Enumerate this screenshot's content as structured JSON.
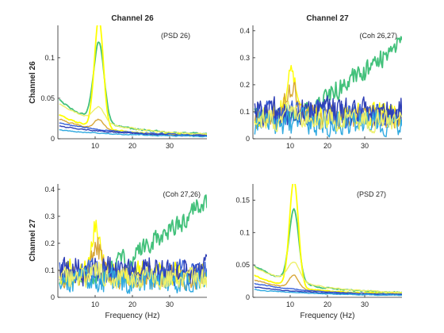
{
  "figure": {
    "background": "#ffffff",
    "colors": {
      "yellow": "#ffff00",
      "green": "#43c17b",
      "orange": "#d8a73a",
      "blue": "#3860d8",
      "darkblue": "#2f3fb6",
      "skyblue": "#2fa9e0",
      "lightyellow": "#eef06a"
    }
  },
  "chart_data": [
    {
      "type": "line",
      "title": "Channel 26",
      "annotation": "(PSD 26)",
      "ylabel": "Channel 26",
      "xlabel": "",
      "xlim": [
        0,
        40
      ],
      "ylim": [
        0,
        0.14
      ],
      "xticks": [
        10,
        20,
        30
      ],
      "xticklabels": [
        "10",
        "20",
        "30"
      ],
      "yticks": [
        0,
        0.05,
        0.1
      ],
      "yticklabels": [
        "0",
        "0.05",
        "0.1"
      ],
      "grid": false,
      "series": [
        {
          "color": "#43c17b",
          "kind": "psd",
          "base": 0.05,
          "peak": 0.098,
          "width": 1.4,
          "decay": 11,
          "floor": 0.005,
          "noise": 0.002,
          "seed": 1
        },
        {
          "color": "#ffff00",
          "kind": "psd",
          "base": 0.03,
          "peak": 0.135,
          "width": 1.2,
          "decay": 11,
          "floor": 0.004,
          "noise": 0.0015,
          "seed": 2
        },
        {
          "color": "#eef06a",
          "kind": "psd",
          "base": 0.045,
          "peak": 0.018,
          "width": 1.5,
          "decay": 13,
          "floor": 0.004,
          "noise": 0.0015,
          "seed": 3
        },
        {
          "color": "#d8a73a",
          "kind": "psd",
          "base": 0.025,
          "peak": 0.012,
          "width": 1.3,
          "decay": 12,
          "floor": 0.003,
          "noise": 0.0015,
          "seed": 4
        },
        {
          "color": "#3860d8",
          "kind": "psd",
          "base": 0.02,
          "peak": 0.0,
          "width": 1.0,
          "decay": 16,
          "floor": 0.003,
          "noise": 0.0012,
          "seed": 5
        },
        {
          "color": "#2f3fb6",
          "kind": "psd",
          "base": 0.016,
          "peak": 0.0,
          "width": 1.0,
          "decay": 18,
          "floor": 0.002,
          "noise": 0.0012,
          "seed": 6
        },
        {
          "color": "#2fa9e0",
          "kind": "psd",
          "base": 0.011,
          "peak": 0.0,
          "width": 1.0,
          "decay": 18,
          "floor": 0.002,
          "noise": 0.001,
          "seed": 7
        }
      ]
    },
    {
      "type": "line",
      "title": "Channel 27",
      "annotation": "(Coh 26,27)",
      "ylabel": "",
      "xlabel": "",
      "xlim": [
        0,
        40
      ],
      "ylim": [
        0,
        0.42
      ],
      "xticks": [
        10,
        20,
        30
      ],
      "xticklabels": [
        "10",
        "20",
        "30"
      ],
      "yticks": [
        0,
        0.1,
        0.2,
        0.3,
        0.4
      ],
      "yticklabels": [
        "0",
        "0.1",
        "0.2",
        "0.3",
        "0.4"
      ],
      "grid": false,
      "series": [
        {
          "color": "#43c17b",
          "kind": "ramp",
          "level": 0.08,
          "end": 0.35,
          "start_x": 12,
          "noise": 0.035,
          "seed": 11
        },
        {
          "color": "#ffff00",
          "kind": "coh",
          "level": 0.09,
          "peak": 0.18,
          "noise": 0.035,
          "seed": 12
        },
        {
          "color": "#d8a73a",
          "kind": "coh",
          "level": 0.08,
          "peak": 0.12,
          "noise": 0.035,
          "seed": 13
        },
        {
          "color": "#3860d8",
          "kind": "coh",
          "level": 0.09,
          "peak": 0.0,
          "noise": 0.035,
          "seed": 14
        },
        {
          "color": "#2f3fb6",
          "kind": "coh",
          "level": 0.1,
          "peak": 0.0,
          "noise": 0.04,
          "seed": 15
        },
        {
          "color": "#2fa9e0",
          "kind": "coh",
          "level": 0.06,
          "peak": 0.0,
          "noise": 0.035,
          "seed": 16
        },
        {
          "color": "#eef06a",
          "kind": "coh",
          "level": 0.07,
          "peak": 0.04,
          "noise": 0.03,
          "seed": 17
        }
      ]
    },
    {
      "type": "line",
      "title": "",
      "annotation": "(Coh 27,26)",
      "ylabel": "Channel 27",
      "xlabel": "Frequency (Hz)",
      "xlim": [
        0,
        40
      ],
      "ylim": [
        0,
        0.42
      ],
      "xticks": [
        10,
        20,
        30
      ],
      "xticklabels": [
        "10",
        "20",
        "30"
      ],
      "yticks": [
        0,
        0.1,
        0.2,
        0.3,
        0.4
      ],
      "yticklabels": [
        "0",
        "0.1",
        "0.2",
        "0.3",
        "0.4"
      ],
      "grid": false,
      "series": [
        {
          "color": "#43c17b",
          "kind": "ramp",
          "level": 0.08,
          "end": 0.35,
          "start_x": 12,
          "noise": 0.035,
          "seed": 21
        },
        {
          "color": "#ffff00",
          "kind": "coh",
          "level": 0.09,
          "peak": 0.18,
          "noise": 0.035,
          "seed": 22
        },
        {
          "color": "#d8a73a",
          "kind": "coh",
          "level": 0.08,
          "peak": 0.12,
          "noise": 0.035,
          "seed": 23
        },
        {
          "color": "#3860d8",
          "kind": "coh",
          "level": 0.09,
          "peak": 0.0,
          "noise": 0.035,
          "seed": 24
        },
        {
          "color": "#2f3fb6",
          "kind": "coh",
          "level": 0.1,
          "peak": 0.0,
          "noise": 0.04,
          "seed": 25
        },
        {
          "color": "#2fa9e0",
          "kind": "coh",
          "level": 0.06,
          "peak": 0.0,
          "noise": 0.035,
          "seed": 26
        },
        {
          "color": "#eef06a",
          "kind": "coh",
          "level": 0.07,
          "peak": 0.04,
          "noise": 0.03,
          "seed": 27
        }
      ]
    },
    {
      "type": "line",
      "title": "",
      "annotation": "(PSD 27)",
      "ylabel": "",
      "xlabel": "Frequency (Hz)",
      "xlim": [
        0,
        40
      ],
      "ylim": [
        0,
        0.175
      ],
      "xticks": [
        10,
        20,
        30
      ],
      "xticklabels": [
        "10",
        "20",
        "30"
      ],
      "yticks": [
        0,
        0.05,
        0.1,
        0.15
      ],
      "yticklabels": [
        "0",
        "0.05",
        "0.1",
        "0.15"
      ],
      "grid": false,
      "series": [
        {
          "color": "#43c17b",
          "kind": "psd",
          "base": 0.05,
          "peak": 0.112,
          "width": 1.3,
          "decay": 13,
          "floor": 0.005,
          "noise": 0.002,
          "seed": 31
        },
        {
          "color": "#ffff00",
          "kind": "psd",
          "base": 0.035,
          "peak": 0.165,
          "width": 1.2,
          "decay": 11,
          "floor": 0.005,
          "noise": 0.0015,
          "seed": 32
        },
        {
          "color": "#eef06a",
          "kind": "psd",
          "base": 0.048,
          "peak": 0.03,
          "width": 1.6,
          "decay": 14,
          "floor": 0.005,
          "noise": 0.0015,
          "seed": 33
        },
        {
          "color": "#d8a73a",
          "kind": "psd",
          "base": 0.028,
          "peak": 0.02,
          "width": 1.3,
          "decay": 12,
          "floor": 0.004,
          "noise": 0.0015,
          "seed": 34
        },
        {
          "color": "#3860d8",
          "kind": "psd",
          "base": 0.022,
          "peak": 0.0,
          "width": 1.0,
          "decay": 16,
          "floor": 0.003,
          "noise": 0.0012,
          "seed": 35
        },
        {
          "color": "#2f3fb6",
          "kind": "psd",
          "base": 0.016,
          "peak": 0.0,
          "width": 1.0,
          "decay": 18,
          "floor": 0.002,
          "noise": 0.0012,
          "seed": 36
        },
        {
          "color": "#2fa9e0",
          "kind": "psd",
          "base": 0.012,
          "peak": 0.0,
          "width": 1.0,
          "decay": 18,
          "floor": 0.002,
          "noise": 0.001,
          "seed": 37
        }
      ]
    }
  ]
}
